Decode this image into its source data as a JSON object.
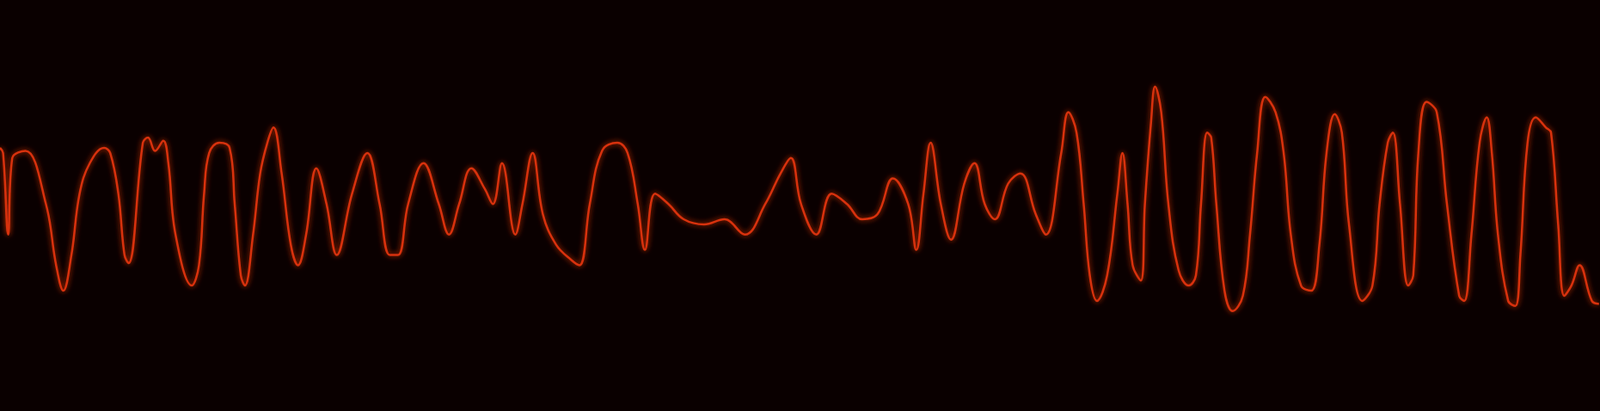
{
  "chart_data": {
    "type": "line",
    "color": "#d8300c",
    "tick_labels": false,
    "grid": false,
    "xlim": [
      0,
      1568
    ],
    "ylim": [
      0,
      403
    ],
    "x": [
      0,
      3,
      8,
      12,
      25,
      45,
      55,
      62,
      70,
      78,
      88,
      102,
      108,
      116,
      122,
      126,
      140,
      145,
      152,
      160,
      165,
      172,
      188,
      195,
      200,
      205,
      215,
      225,
      230,
      236,
      240,
      248,
      255,
      262,
      268,
      276,
      285,
      292,
      300,
      310,
      320,
      330,
      345,
      360,
      372,
      382,
      390,
      400,
      415,
      430,
      440,
      450,
      462,
      475,
      483,
      492,
      505,
      512,
      522,
      532,
      545,
      560,
      568,
      578,
      590,
      605,
      615,
      625,
      632,
      642,
      655,
      670,
      690,
      710,
      730,
      750,
      765,
      775,
      785,
      800,
      815,
      830,
      845,
      860,
      875,
      890,
      898,
      905,
      912,
      922,
      932,
      945,
      955,
      965,
      975,
      988,
      1000,
      1015,
      1025,
      1040,
      1047,
      1055,
      1062,
      1068,
      1075,
      1085,
      1095,
      1100,
      1105,
      1110,
      1118,
      1122,
      1128,
      1132,
      1138,
      1145,
      1155,
      1165,
      1172,
      1177,
      1183,
      1187,
      1192,
      1200,
      1208,
      1218,
      1225,
      1232,
      1240,
      1250,
      1258,
      1265,
      1275,
      1285,
      1293,
      1300,
      1308,
      1315,
      1322,
      1335,
      1345,
      1352,
      1360,
      1365,
      1372,
      1380,
      1385,
      1390,
      1398,
      1408,
      1418,
      1430,
      1435,
      1442,
      1450,
      1457,
      1462,
      1468,
      1478,
      1485,
      1490,
      1497,
      1505,
      1515,
      1520,
      1527,
      1533,
      1540,
      1548,
      1560,
      1567
    ],
    "values": [
      258,
      253,
      173,
      248,
      255,
      203,
      143,
      118,
      153,
      213,
      243,
      258,
      253,
      213,
      153,
      145,
      263,
      268,
      255,
      265,
      243,
      173,
      123,
      143,
      213,
      253,
      263,
      258,
      203,
      133,
      123,
      173,
      233,
      263,
      278,
      233,
      163,
      143,
      173,
      238,
      203,
      153,
      213,
      253,
      203,
      153,
      153,
      203,
      243,
      203,
      173,
      203,
      238,
      218,
      203,
      243,
      173,
      203,
      253,
      193,
      163,
      148,
      143,
      203,
      255,
      263,
      253,
      203,
      158,
      213,
      203,
      188,
      183,
      188,
      173,
      203,
      233,
      248,
      203,
      173,
      213,
      203,
      188,
      193,
      228,
      203,
      158,
      213,
      263,
      203,
      168,
      223,
      243,
      203,
      188,
      223,
      233,
      193,
      173,
      253,
      293,
      273,
      203,
      133,
      108,
      133,
      213,
      253,
      203,
      143,
      128,
      203,
      283,
      318,
      293,
      203,
      138,
      123,
      133,
      203,
      273,
      268,
      203,
      118,
      98,
      113,
      173,
      253,
      308,
      293,
      253,
      173,
      123,
      118,
      163,
      253,
      291,
      273,
      183,
      108,
      123,
      203,
      263,
      273,
      203,
      123,
      133,
      253,
      303,
      293,
      203,
      113,
      108,
      173,
      263,
      288,
      253,
      173,
      108,
      103,
      153,
      263,
      288,
      278,
      273,
      183,
      113,
      123,
      143,
      108,
      105
    ]
  }
}
